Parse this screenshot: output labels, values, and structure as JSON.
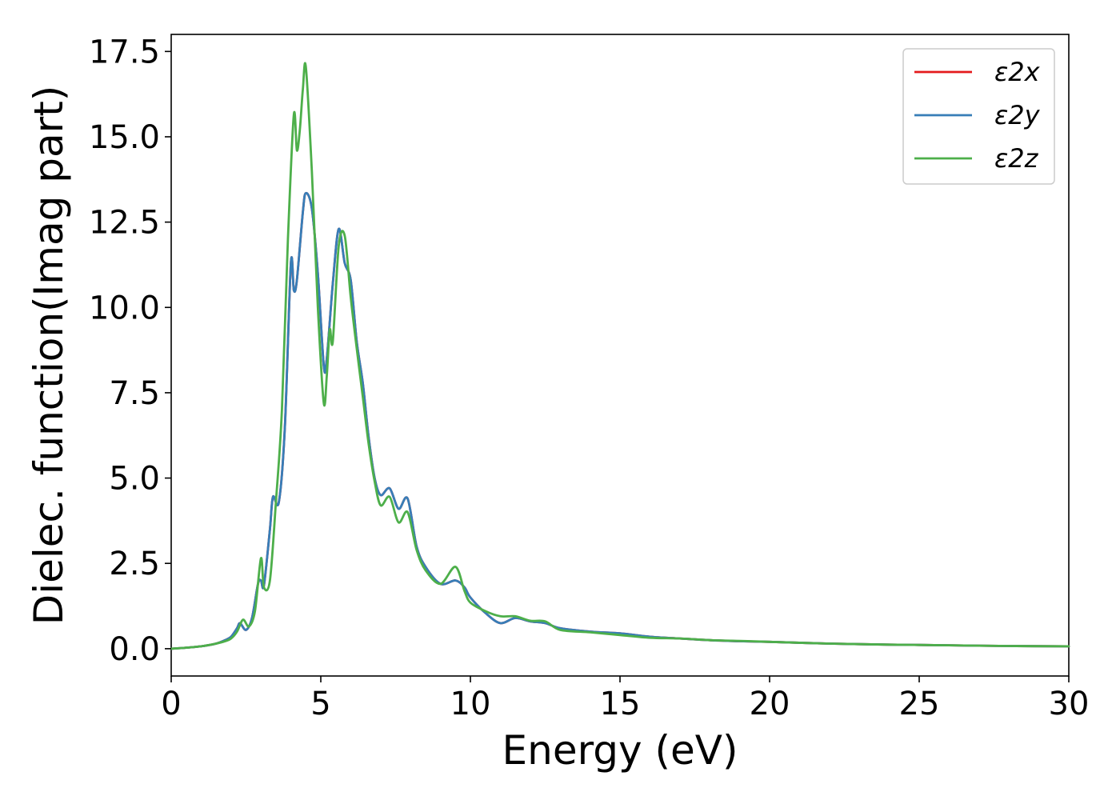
{
  "chart_data": {
    "type": "line",
    "title": "",
    "xlabel": "Energy (eV)",
    "ylabel": "Dielec. function(Imag part)",
    "xlim": [
      0,
      30
    ],
    "ylim": [
      -0.8,
      18
    ],
    "xticks": [
      0,
      5,
      10,
      15,
      20,
      25,
      30
    ],
    "yticks": [
      0.0,
      2.5,
      5.0,
      7.5,
      10.0,
      12.5,
      15.0,
      17.5
    ],
    "xtick_labels": [
      "0",
      "5",
      "10",
      "15",
      "20",
      "25",
      "30"
    ],
    "ytick_labels": [
      "0.0",
      "2.5",
      "5.0",
      "7.5",
      "10.0",
      "12.5",
      "15.0",
      "17.5"
    ],
    "grid": false,
    "legend_position": "top-right",
    "series": [
      {
        "name": "ε2x",
        "color": "#e41a1c",
        "x": [
          0,
          0.5,
          1.0,
          1.5,
          1.8,
          2.0,
          2.2,
          2.3,
          2.5,
          2.7,
          2.9,
          3.0,
          3.1,
          3.3,
          3.4,
          3.6,
          3.8,
          4.0,
          4.1,
          4.2,
          4.4,
          4.5,
          4.7,
          4.9,
          5.1,
          5.2,
          5.4,
          5.6,
          5.8,
          6.0,
          6.2,
          6.4,
          6.6,
          6.8,
          7.0,
          7.3,
          7.6,
          7.9,
          8.2,
          8.5,
          9.0,
          9.5,
          9.8,
          10.0,
          10.5,
          11.0,
          11.5,
          12.0,
          12.5,
          13.0,
          14.0,
          15.0,
          16.0,
          17.0,
          18.0,
          19.0,
          20.0,
          22.0,
          24.0,
          26.0,
          28.0,
          30.0
        ],
        "y": [
          0.0,
          0.03,
          0.07,
          0.15,
          0.25,
          0.35,
          0.6,
          0.75,
          0.55,
          0.9,
          1.9,
          2.0,
          1.85,
          3.5,
          4.45,
          4.3,
          6.5,
          11.3,
          10.5,
          10.8,
          12.8,
          13.35,
          12.9,
          11.0,
          8.3,
          8.5,
          10.7,
          12.3,
          11.3,
          10.8,
          9.0,
          7.8,
          6.2,
          5.0,
          4.5,
          4.7,
          4.1,
          4.4,
          3.0,
          2.4,
          1.9,
          2.0,
          1.8,
          1.5,
          1.05,
          0.75,
          0.9,
          0.8,
          0.75,
          0.6,
          0.5,
          0.45,
          0.35,
          0.3,
          0.25,
          0.22,
          0.2,
          0.15,
          0.12,
          0.1,
          0.08,
          0.07
        ]
      },
      {
        "name": "ε2y",
        "color": "#377eb8",
        "x": [
          0,
          0.5,
          1.0,
          1.5,
          1.8,
          2.0,
          2.2,
          2.3,
          2.5,
          2.7,
          2.9,
          3.0,
          3.1,
          3.3,
          3.4,
          3.6,
          3.8,
          4.0,
          4.1,
          4.2,
          4.4,
          4.5,
          4.7,
          4.9,
          5.1,
          5.2,
          5.4,
          5.6,
          5.8,
          6.0,
          6.2,
          6.4,
          6.6,
          6.8,
          7.0,
          7.3,
          7.6,
          7.9,
          8.2,
          8.5,
          9.0,
          9.5,
          9.8,
          10.0,
          10.5,
          11.0,
          11.5,
          12.0,
          12.5,
          13.0,
          14.0,
          15.0,
          16.0,
          17.0,
          18.0,
          19.0,
          20.0,
          22.0,
          24.0,
          26.0,
          28.0,
          30.0
        ],
        "y": [
          0.0,
          0.03,
          0.07,
          0.15,
          0.25,
          0.35,
          0.6,
          0.75,
          0.55,
          0.9,
          1.9,
          2.0,
          1.85,
          3.5,
          4.45,
          4.3,
          6.5,
          11.3,
          10.5,
          10.8,
          12.8,
          13.35,
          12.9,
          11.0,
          8.3,
          8.5,
          10.7,
          12.3,
          11.3,
          10.8,
          9.0,
          7.8,
          6.2,
          5.0,
          4.5,
          4.7,
          4.1,
          4.4,
          3.0,
          2.4,
          1.9,
          2.0,
          1.8,
          1.5,
          1.05,
          0.75,
          0.9,
          0.8,
          0.75,
          0.6,
          0.5,
          0.45,
          0.35,
          0.3,
          0.25,
          0.22,
          0.2,
          0.15,
          0.12,
          0.1,
          0.08,
          0.07
        ]
      },
      {
        "name": "ε2z",
        "color": "#4daf4a",
        "x": [
          0,
          0.5,
          1.0,
          1.5,
          1.8,
          2.0,
          2.2,
          2.4,
          2.6,
          2.8,
          3.0,
          3.1,
          3.3,
          3.5,
          3.7,
          3.9,
          4.1,
          4.2,
          4.3,
          4.4,
          4.5,
          4.7,
          4.9,
          5.1,
          5.2,
          5.3,
          5.4,
          5.6,
          5.8,
          6.0,
          6.2,
          6.4,
          6.6,
          6.8,
          7.0,
          7.3,
          7.6,
          7.9,
          8.2,
          8.5,
          9.0,
          9.5,
          9.8,
          10.0,
          10.5,
          11.0,
          11.5,
          12.0,
          12.5,
          13.0,
          14.0,
          15.0,
          16.0,
          17.0,
          18.0,
          19.0,
          20.0,
          22.0,
          24.0,
          26.0,
          28.0,
          30.0
        ],
        "y": [
          0.0,
          0.03,
          0.07,
          0.15,
          0.22,
          0.3,
          0.5,
          0.85,
          0.65,
          1.1,
          2.65,
          1.8,
          2.0,
          4.3,
          7.0,
          12.0,
          15.65,
          14.6,
          15.2,
          16.4,
          17.05,
          14.0,
          10.0,
          7.2,
          8.0,
          9.35,
          9.0,
          11.8,
          12.1,
          10.3,
          8.8,
          7.4,
          6.0,
          4.9,
          4.2,
          4.45,
          3.7,
          4.0,
          2.9,
          2.3,
          1.9,
          2.4,
          1.7,
          1.35,
          1.1,
          0.95,
          0.95,
          0.82,
          0.8,
          0.55,
          0.48,
          0.4,
          0.32,
          0.3,
          0.25,
          0.23,
          0.2,
          0.15,
          0.12,
          0.1,
          0.08,
          0.07
        ]
      }
    ]
  }
}
